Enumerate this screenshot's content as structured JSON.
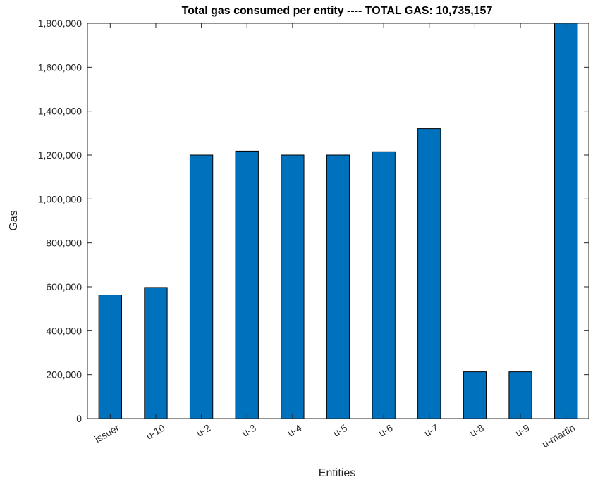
{
  "chart_data": {
    "type": "bar",
    "title": "Total gas consumed per entity ---- TOTAL GAS: 10,735,157",
    "xlabel": "Entities",
    "ylabel": "Gas",
    "categories": [
      "issuer",
      "u-10",
      "u-2",
      "u-3",
      "u-4",
      "u-5",
      "u-6",
      "u-7",
      "u-8",
      "u-9",
      "u-martin"
    ],
    "values": [
      563000,
      597000,
      1200000,
      1218000,
      1200000,
      1200000,
      1215000,
      1320000,
      213000,
      213000,
      1800000
    ],
    "ylim": [
      0,
      1800000
    ],
    "yticks": [
      0,
      200000,
      400000,
      600000,
      800000,
      1000000,
      1200000,
      1400000,
      1600000,
      1800000
    ],
    "ytick_labels": [
      "0",
      "200,000",
      "400,000",
      "600,000",
      "800,000",
      "1,000,000",
      "1,200,000",
      "1,400,000",
      "1,600,000",
      "1,800,000"
    ],
    "grid": false,
    "bar_color": "#0072BD",
    "edge_color": "#000000"
  }
}
